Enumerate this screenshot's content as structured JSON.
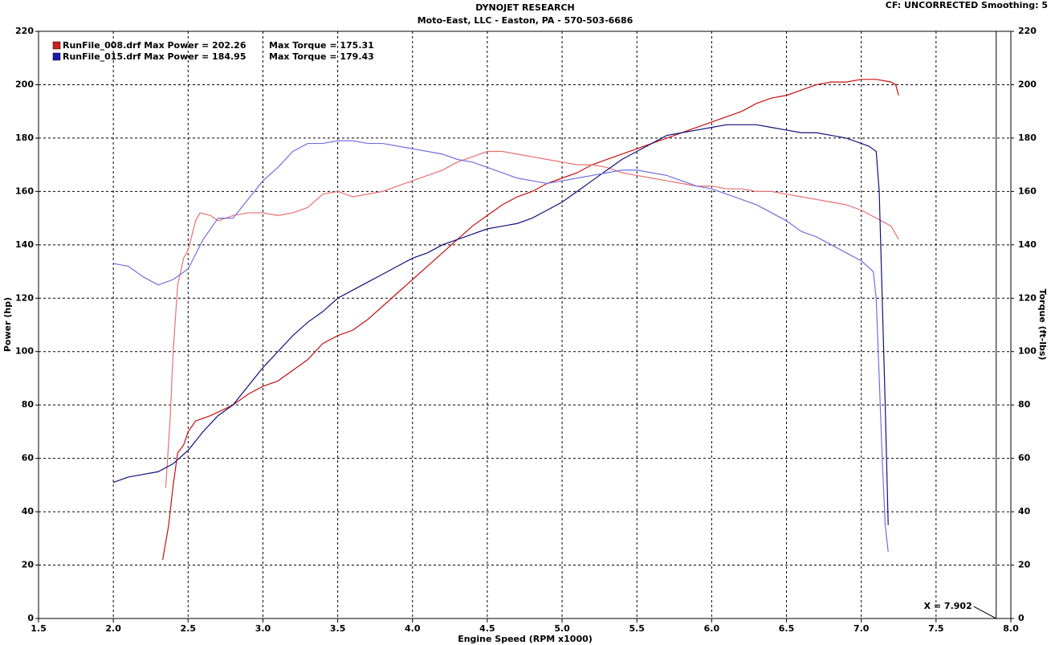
{
  "chart_data": {
    "type": "line",
    "title": "DYNOJET RESEARCH",
    "subtitle": "Moto-East, LLC - Easton, PA - 570-503-6686",
    "settings_label": "CF: UNCORRECTED  Smoothing: 5",
    "x_label": "Engine Speed (RPM x1000)",
    "y_label": "Power (hp)",
    "y2_label": "Torque (ft-lbs)",
    "cursor": {
      "x": 7.902,
      "label": "X = 7.902"
    },
    "grid": true,
    "legend": [
      {
        "label": "RunFile_008.drf Max Power = 202.26",
        "torque_label": "Max Torque = 175.31",
        "color": "#d22020"
      },
      {
        "label": "RunFile_015.drf Max Power = 184.95",
        "torque_label": "Max Torque = 179.43",
        "color": "#1a1ab0"
      }
    ],
    "xlim": [
      1.5,
      8.0
    ],
    "xticks": [
      1.5,
      {
        "value": 2,
        "label": "2.0"
      },
      2.5,
      {
        "value": 3,
        "label": "3.0"
      },
      3.5,
      {
        "value": 4,
        "label": "4.0"
      },
      4.5,
      {
        "value": 5,
        "label": "5.0"
      },
      5.5,
      {
        "value": 6,
        "label": "6.0"
      },
      6.5,
      {
        "value": 7,
        "label": "7.0"
      },
      7.5,
      {
        "value": 8,
        "label": "8.0"
      }
    ],
    "ylim": [
      0,
      220
    ],
    "yticks": [
      0,
      20,
      40,
      60,
      80,
      100,
      120,
      140,
      160,
      180,
      200,
      220
    ],
    "y2lim": [
      0,
      220
    ],
    "y2ticks": [
      0,
      20,
      40,
      60,
      80,
      100,
      120,
      140,
      160,
      180,
      200,
      220
    ],
    "series": [
      {
        "color": "#c41010",
        "axis": "y",
        "x": [
          2.33,
          2.37,
          2.4,
          2.43,
          2.47,
          2.5,
          2.55,
          2.65,
          2.8,
          2.9,
          3.0,
          3.1,
          3.2,
          3.3,
          3.4,
          3.5,
          3.6,
          3.7,
          3.8,
          3.9,
          4.0,
          4.1,
          4.2,
          4.3,
          4.4,
          4.5,
          4.6,
          4.7,
          4.8,
          4.9,
          5.0,
          5.1,
          5.2,
          5.3,
          5.4,
          5.5,
          5.6,
          5.7,
          5.8,
          5.9,
          6.0,
          6.1,
          6.2,
          6.3,
          6.4,
          6.5,
          6.6,
          6.7,
          6.8,
          6.9,
          7.0,
          7.1,
          7.2,
          7.23,
          7.25
        ],
        "values": [
          22,
          35,
          50,
          62,
          65,
          70,
          74,
          76,
          80,
          84,
          87,
          89,
          93,
          97,
          103,
          106,
          108,
          112,
          117,
          122,
          127,
          132,
          137,
          142,
          147,
          151,
          155,
          158,
          160,
          163,
          165,
          167,
          170,
          172,
          174,
          176,
          178,
          180,
          182,
          184,
          186,
          188,
          190,
          193,
          195,
          196,
          198,
          200,
          201,
          201,
          202,
          202,
          201,
          200,
          196
        ]
      },
      {
        "color": "#e87070",
        "axis": "y2",
        "x": [
          2.35,
          2.38,
          2.4,
          2.43,
          2.47,
          2.5,
          2.55,
          2.58,
          2.65,
          2.7,
          2.8,
          2.9,
          3.0,
          3.1,
          3.2,
          3.3,
          3.4,
          3.5,
          3.6,
          3.7,
          3.8,
          3.9,
          4.0,
          4.1,
          4.2,
          4.3,
          4.4,
          4.5,
          4.6,
          4.7,
          4.8,
          4.9,
          5.0,
          5.1,
          5.2,
          5.3,
          5.4,
          5.5,
          5.6,
          5.7,
          5.8,
          5.9,
          6.0,
          6.1,
          6.2,
          6.3,
          6.4,
          6.5,
          6.6,
          6.7,
          6.8,
          6.9,
          7.0,
          7.1,
          7.2,
          7.25
        ],
        "values": [
          49,
          75,
          100,
          125,
          135,
          138,
          149,
          152,
          151,
          149,
          151,
          152,
          152,
          151,
          152,
          154,
          159,
          160,
          158,
          159,
          160,
          162,
          164,
          166,
          168,
          171,
          173,
          175,
          175,
          174,
          173,
          172,
          171,
          170,
          170,
          169,
          167,
          166,
          165,
          164,
          163,
          162,
          162,
          161,
          161,
          160,
          160,
          159,
          158,
          157,
          156,
          155,
          153,
          150,
          147,
          142
        ]
      },
      {
        "color": "#10107a",
        "axis": "y",
        "x": [
          2.0,
          2.1,
          2.2,
          2.3,
          2.4,
          2.5,
          2.6,
          2.7,
          2.8,
          2.9,
          3.0,
          3.1,
          3.2,
          3.3,
          3.4,
          3.5,
          3.6,
          3.7,
          3.8,
          3.9,
          4.0,
          4.1,
          4.2,
          4.3,
          4.4,
          4.5,
          4.6,
          4.7,
          4.8,
          4.9,
          5.0,
          5.1,
          5.2,
          5.3,
          5.4,
          5.5,
          5.6,
          5.7,
          5.8,
          5.9,
          6.0,
          6.1,
          6.2,
          6.3,
          6.4,
          6.5,
          6.6,
          6.7,
          6.8,
          6.9,
          7.0,
          7.05,
          7.1,
          7.12,
          7.14,
          7.16,
          7.18
        ],
        "values": [
          51,
          53,
          54,
          55,
          58,
          63,
          70,
          76,
          80,
          87,
          94,
          100,
          106,
          111,
          115,
          120,
          123,
          126,
          129,
          132,
          135,
          137,
          140,
          142,
          144,
          146,
          147,
          148,
          150,
          153,
          156,
          160,
          164,
          168,
          172,
          175,
          178,
          181,
          182,
          183,
          184,
          185,
          185,
          185,
          184,
          183,
          182,
          182,
          181,
          180,
          178,
          177,
          175,
          160,
          120,
          80,
          35
        ]
      },
      {
        "color": "#7070e0",
        "axis": "y2",
        "x": [
          2.0,
          2.1,
          2.2,
          2.3,
          2.4,
          2.5,
          2.6,
          2.7,
          2.8,
          2.9,
          3.0,
          3.1,
          3.2,
          3.3,
          3.4,
          3.5,
          3.6,
          3.7,
          3.8,
          3.9,
          4.0,
          4.1,
          4.2,
          4.3,
          4.4,
          4.5,
          4.6,
          4.7,
          4.8,
          4.9,
          5.0,
          5.1,
          5.2,
          5.3,
          5.4,
          5.5,
          5.6,
          5.7,
          5.8,
          5.9,
          6.0,
          6.1,
          6.2,
          6.3,
          6.4,
          6.5,
          6.6,
          6.7,
          6.8,
          6.9,
          7.0,
          7.08,
          7.1,
          7.12,
          7.14,
          7.16,
          7.18
        ],
        "values": [
          133,
          132,
          128,
          125,
          127,
          131,
          142,
          150,
          150,
          157,
          164,
          169,
          175,
          178,
          178,
          179,
          179,
          178,
          178,
          177,
          176,
          175,
          174,
          172,
          171,
          169,
          167,
          165,
          164,
          163,
          164,
          165,
          166,
          167,
          168,
          168,
          167,
          166,
          164,
          162,
          161,
          159,
          157,
          155,
          152,
          149,
          145,
          143,
          140,
          137,
          134,
          130,
          120,
          90,
          60,
          35,
          25
        ]
      }
    ]
  }
}
